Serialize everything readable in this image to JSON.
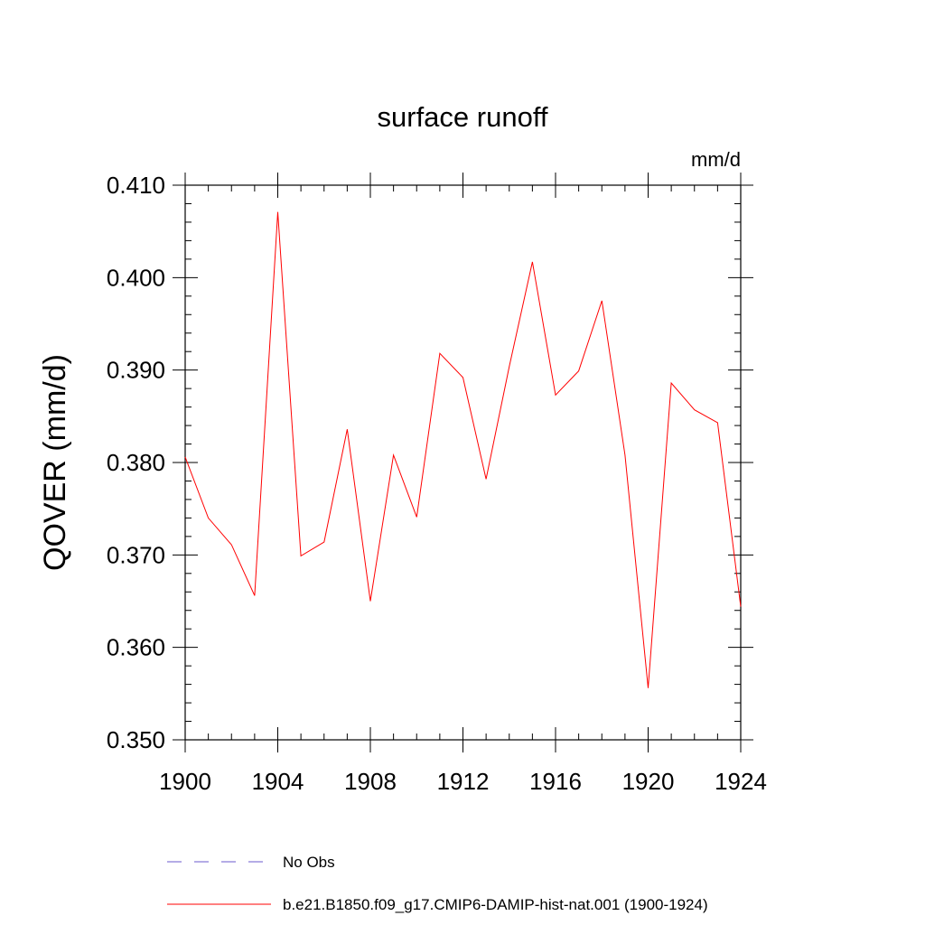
{
  "chart_data": {
    "type": "line",
    "title": "surface runoff",
    "units_label": "mm/d",
    "xlabel": "",
    "ylabel": "QOVER  (mm/d)",
    "xlim": [
      1900,
      1924
    ],
    "ylim": [
      0.35,
      0.41
    ],
    "x_ticks": [
      1900,
      1904,
      1908,
      1912,
      1916,
      1920,
      1924
    ],
    "x_tick_labels": [
      "1900",
      "1904",
      "1908",
      "1912",
      "1916",
      "1920",
      "1924"
    ],
    "y_ticks": [
      0.35,
      0.36,
      0.37,
      0.38,
      0.39,
      0.4,
      0.41
    ],
    "y_tick_labels": [
      "0.350",
      "0.360",
      "0.370",
      "0.380",
      "0.390",
      "0.400",
      "0.410"
    ],
    "grid": false,
    "legend_position": "bottom",
    "series": [
      {
        "name": "b.e21.B1850.f09_g17.CMIP6-DAMIP-hist-nat.001 (1900-1924)",
        "color": "#ff0000",
        "style": "solid",
        "x": [
          1900,
          1901,
          1902,
          1903,
          1904,
          1905,
          1906,
          1907,
          1908,
          1909,
          1910,
          1911,
          1912,
          1913,
          1914,
          1915,
          1916,
          1917,
          1918,
          1919,
          1920,
          1921,
          1922,
          1923,
          1924
        ],
        "values": [
          0.3806,
          0.374,
          0.3711,
          0.3656,
          0.4071,
          0.3699,
          0.3714,
          0.3836,
          0.365,
          0.3808,
          0.3741,
          0.3918,
          0.3892,
          0.3782,
          0.3904,
          0.4017,
          0.3873,
          0.3899,
          0.3975,
          0.3808,
          0.3556,
          0.3886,
          0.3857,
          0.3843,
          0.3644
        ]
      },
      {
        "name": "No Obs",
        "color": "#6a5acd",
        "style": "dashed",
        "x": [],
        "values": []
      }
    ]
  }
}
